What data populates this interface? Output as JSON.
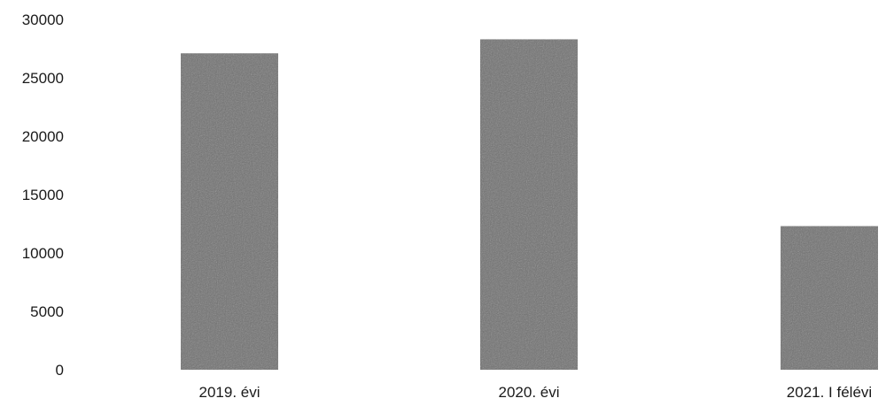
{
  "chart_data": {
    "type": "bar",
    "title": "",
    "xlabel": "",
    "ylabel": "",
    "ylim": [
      0,
      30000
    ],
    "yticks": [
      0,
      5000,
      10000,
      15000,
      20000,
      25000,
      30000
    ],
    "ytick_labels": [
      "0",
      "5000",
      "10000",
      "15000",
      "20000",
      "25000",
      "30000"
    ],
    "categories": [
      "2019. évi",
      "2020. évi",
      "2021. I félévi"
    ],
    "values": [
      27100,
      28300,
      12300
    ],
    "grid": false,
    "legend": "none",
    "bar_color": "#707070"
  }
}
